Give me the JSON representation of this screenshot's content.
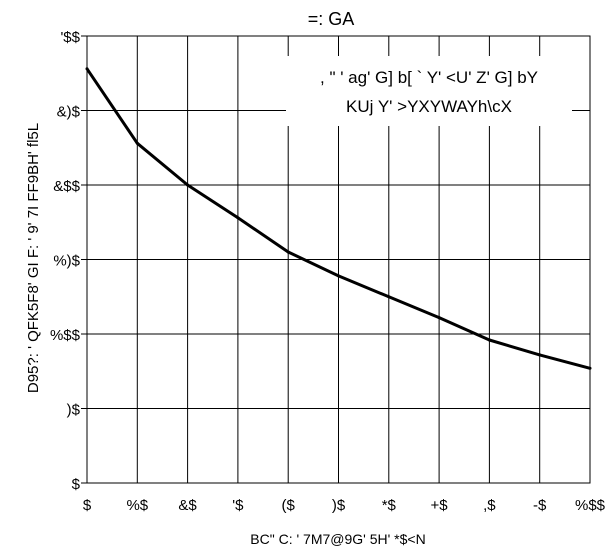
{
  "chart_data": {
    "type": "line",
    "title": "=: GA",
    "xlabel": "BC\" C: ' 7M7@9G' 5H' *$<N",
    "ylabel": "D95?: ' QFK5F8' GI F: ' 9' 7I FF9BH' fl5L",
    "annotation": [
      ", \" ' ag' G] b[ ` Y' <U' Z' G] bY",
      "KUj Y' >YXYWAYh\\cX"
    ],
    "x_ticks": [
      {
        "v": 0,
        "label": "$"
      },
      {
        "v": 10,
        "label": "%$"
      },
      {
        "v": 20,
        "label": "&$"
      },
      {
        "v": 30,
        "label": "'$"
      },
      {
        "v": 40,
        "label": "($"
      },
      {
        "v": 50,
        "label": ")$"
      },
      {
        "v": 60,
        "label": "*$"
      },
      {
        "v": 70,
        "label": "+$"
      },
      {
        "v": 80,
        "label": ",$"
      },
      {
        "v": 90,
        "label": "-$"
      },
      {
        "v": 100,
        "label": "%$$"
      }
    ],
    "y_ticks": [
      {
        "v": 0,
        "label": "$"
      },
      {
        "v": 50,
        "label": ")$"
      },
      {
        "v": 100,
        "label": "%$$"
      },
      {
        "v": 150,
        "label": "%)$"
      },
      {
        "v": 200,
        "label": "&$$"
      },
      {
        "v": 250,
        "label": "&)$"
      },
      {
        "v": 300,
        "label": "'$$"
      }
    ],
    "xlim": [
      0,
      100
    ],
    "ylim": [
      0,
      300
    ],
    "grid": true,
    "series": [
      {
        "color": "#000000",
        "x": [
          0,
          10,
          20,
          30,
          40,
          50,
          60,
          70,
          80,
          90,
          100
        ],
        "y": [
          278,
          228,
          200,
          178,
          155,
          139,
          125,
          111,
          96,
          86,
          77
        ]
      }
    ]
  }
}
